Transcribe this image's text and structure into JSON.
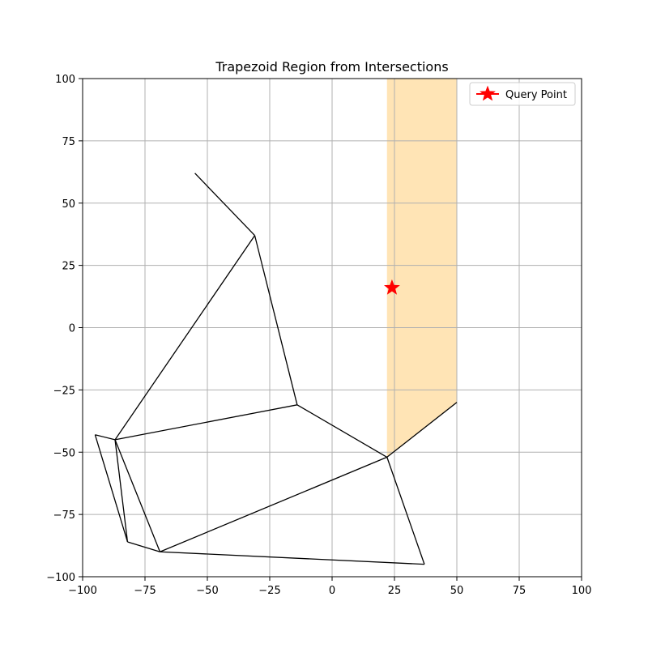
{
  "chart_data": {
    "type": "line",
    "title": "Trapezoid Region from Intersections",
    "xlabel": "",
    "ylabel": "",
    "xlim": [
      -100,
      100
    ],
    "ylim": [
      -100,
      100
    ],
    "xticks": [
      -100,
      -75,
      -50,
      -25,
      0,
      25,
      50,
      75,
      100
    ],
    "yticks": [
      -100,
      -75,
      -50,
      -25,
      0,
      25,
      50,
      75,
      100
    ],
    "grid": true,
    "legend_position": "upper right",
    "segments": [
      [
        [
          -55,
          62
        ],
        [
          -31,
          37
        ]
      ],
      [
        [
          -31,
          37
        ],
        [
          -87,
          -45
        ]
      ],
      [
        [
          -31,
          37
        ],
        [
          -14,
          -31
        ]
      ],
      [
        [
          -14,
          -31
        ],
        [
          -87,
          -45
        ]
      ],
      [
        [
          -14,
          -31
        ],
        [
          22,
          -52
        ]
      ],
      [
        [
          -95,
          -43
        ],
        [
          -82,
          -86
        ]
      ],
      [
        [
          -95,
          -43
        ],
        [
          -87,
          -45
        ]
      ],
      [
        [
          -87,
          -45
        ],
        [
          -82,
          -86
        ]
      ],
      [
        [
          -87,
          -45
        ],
        [
          -69,
          -90
        ]
      ],
      [
        [
          -82,
          -86
        ],
        [
          -69,
          -90
        ]
      ],
      [
        [
          -69,
          -90
        ],
        [
          22,
          -52
        ]
      ],
      [
        [
          -69,
          -90
        ],
        [
          37,
          -95
        ]
      ],
      [
        [
          22,
          -52
        ],
        [
          37,
          -95
        ]
      ],
      [
        [
          22,
          -52
        ],
        [
          50,
          -30
        ]
      ]
    ],
    "trapezoid": {
      "vertices": [
        [
          22,
          100
        ],
        [
          50,
          100
        ],
        [
          50,
          -30
        ],
        [
          22,
          -52
        ]
      ],
      "color": "#ffe4b5"
    },
    "query_point": {
      "name": "Query Point",
      "x": 24,
      "y": 16,
      "color": "#ff0000"
    },
    "segment_color": "#000000",
    "grid_color": "#b0b0b0"
  }
}
